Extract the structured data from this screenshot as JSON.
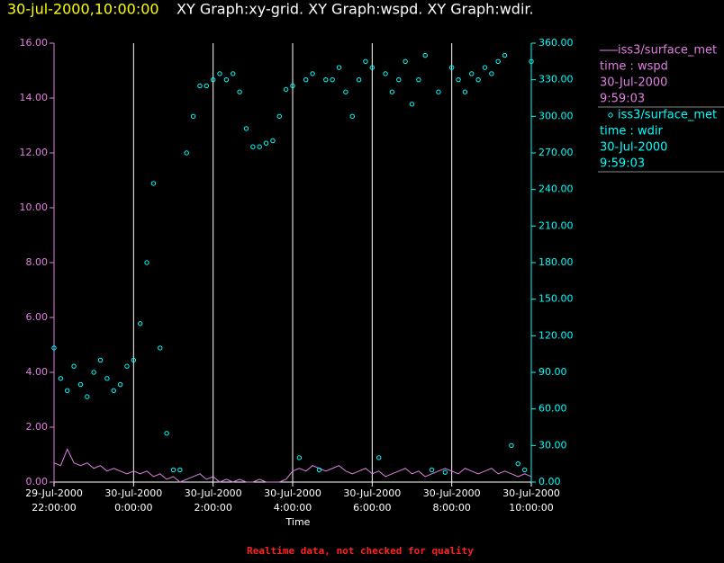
{
  "chart_data": {
    "type": "line-scatter",
    "title_time": "30-jul-2000,10:00:00",
    "title": "XY Graph:xy-grid.  XY Graph:wspd.  XY Graph:wdir.",
    "x_label": "Time",
    "note": "Realtime data, not checked for quality",
    "x": [
      "2000-07-29 22:00",
      "2000-07-29 22:10",
      "2000-07-29 22:20",
      "2000-07-29 22:30",
      "2000-07-29 22:40",
      "2000-07-29 22:50",
      "2000-07-29 23:00",
      "2000-07-29 23:10",
      "2000-07-29 23:20",
      "2000-07-29 23:30",
      "2000-07-29 23:40",
      "2000-07-29 23:50",
      "2000-07-30 00:00",
      "2000-07-30 00:10",
      "2000-07-30 00:20",
      "2000-07-30 00:30",
      "2000-07-30 00:40",
      "2000-07-30 00:50",
      "2000-07-30 01:00",
      "2000-07-30 01:10",
      "2000-07-30 01:20",
      "2000-07-30 01:30",
      "2000-07-30 01:40",
      "2000-07-30 01:50",
      "2000-07-30 02:00",
      "2000-07-30 02:10",
      "2000-07-30 02:20",
      "2000-07-30 02:30",
      "2000-07-30 02:40",
      "2000-07-30 02:50",
      "2000-07-30 03:00",
      "2000-07-30 03:10",
      "2000-07-30 03:20",
      "2000-07-30 03:30",
      "2000-07-30 03:40",
      "2000-07-30 03:50",
      "2000-07-30 04:00",
      "2000-07-30 04:10",
      "2000-07-30 04:20",
      "2000-07-30 04:30",
      "2000-07-30 04:40",
      "2000-07-30 04:50",
      "2000-07-30 05:00",
      "2000-07-30 05:10",
      "2000-07-30 05:20",
      "2000-07-30 05:30",
      "2000-07-30 05:40",
      "2000-07-30 05:50",
      "2000-07-30 06:00",
      "2000-07-30 06:10",
      "2000-07-30 06:20",
      "2000-07-30 06:30",
      "2000-07-30 06:40",
      "2000-07-30 06:50",
      "2000-07-30 07:00",
      "2000-07-30 07:10",
      "2000-07-30 07:20",
      "2000-07-30 07:30",
      "2000-07-30 07:40",
      "2000-07-30 07:50",
      "2000-07-30 08:00",
      "2000-07-30 08:10",
      "2000-07-30 08:20",
      "2000-07-30 08:30",
      "2000-07-30 08:40",
      "2000-07-30 08:50",
      "2000-07-30 09:00",
      "2000-07-30 09:10",
      "2000-07-30 09:20",
      "2000-07-30 09:30",
      "2000-07-30 09:40",
      "2000-07-30 09:50",
      "2000-07-30 10:00"
    ],
    "xlim": [
      "2000-07-29 22:00",
      "2000-07-30 10:00"
    ],
    "xticks": [
      {
        "value": "2000-07-29 22:00",
        "label": [
          "29-Jul-2000",
          "22:00:00"
        ]
      },
      {
        "value": "2000-07-30 00:00",
        "label": [
          "30-Jul-2000",
          "0:00:00"
        ]
      },
      {
        "value": "2000-07-30 02:00",
        "label": [
          "30-Jul-2000",
          "2:00:00"
        ]
      },
      {
        "value": "2000-07-30 04:00",
        "label": [
          "30-Jul-2000",
          "4:00:00"
        ]
      },
      {
        "value": "2000-07-30 06:00",
        "label": [
          "30-Jul-2000",
          "6:00:00"
        ]
      },
      {
        "value": "2000-07-30 08:00",
        "label": [
          "30-Jul-2000",
          "8:00:00"
        ]
      },
      {
        "value": "2000-07-30 10:00",
        "label": [
          "30-Jul-2000",
          "10:00:00"
        ]
      }
    ],
    "ylim": [
      0,
      16
    ],
    "yticks": [
      {
        "value": 0,
        "label": "0.00"
      },
      {
        "value": 2,
        "label": "2.00"
      },
      {
        "value": 4,
        "label": "4.00"
      },
      {
        "value": 6,
        "label": "6.00"
      },
      {
        "value": 8,
        "label": "8.00"
      },
      {
        "value": 10,
        "label": "10.00"
      },
      {
        "value": 12,
        "label": "12.00"
      },
      {
        "value": 14,
        "label": "14.00"
      },
      {
        "value": 16,
        "label": "16.00"
      }
    ],
    "y2lim": [
      0,
      360
    ],
    "y2ticks": [
      {
        "value": 0,
        "label": "0.00"
      },
      {
        "value": 30,
        "label": "30.00"
      },
      {
        "value": 60,
        "label": "60.00"
      },
      {
        "value": 90,
        "label": "90.00"
      },
      {
        "value": 120,
        "label": "120.00"
      },
      {
        "value": 150,
        "label": "150.00"
      },
      {
        "value": 180,
        "label": "180.00"
      },
      {
        "value": 210,
        "label": "210.00"
      },
      {
        "value": 240,
        "label": "240.00"
      },
      {
        "value": 270,
        "label": "270.00"
      },
      {
        "value": 300,
        "label": "300.00"
      },
      {
        "value": 330,
        "label": "330.00"
      },
      {
        "value": 360,
        "label": "360.00"
      }
    ],
    "series": [
      {
        "name": "iss3/surface_met",
        "field": "time : wspd",
        "date": "30-Jul-2000",
        "time": "9:59:03",
        "color": "#e080e0",
        "kind": "line",
        "values": [
          0.7,
          0.6,
          1.2,
          0.7,
          0.6,
          0.7,
          0.5,
          0.6,
          0.4,
          0.5,
          0.4,
          0.3,
          0.4,
          0.3,
          0.4,
          0.2,
          0.3,
          0.1,
          0.2,
          0,
          0.1,
          0.2,
          0.3,
          0.1,
          0.2,
          0,
          0.1,
          0,
          0.1,
          0,
          0,
          0.1,
          0,
          0,
          0,
          0.1,
          0.4,
          0.5,
          0.4,
          0.6,
          0.5,
          0.4,
          0.5,
          0.6,
          0.4,
          0.3,
          0.4,
          0.5,
          0.3,
          0.4,
          0.2,
          0.3,
          0.4,
          0.5,
          0.3,
          0.4,
          0.2,
          0.3,
          0.4,
          0.5,
          0.4,
          0.3,
          0.5,
          0.4,
          0.3,
          0.4,
          0.5,
          0.3,
          0.4,
          0.3,
          0.2,
          0.3,
          0.2
        ]
      },
      {
        "name": "iss3/surface_met",
        "field": "time : wdir",
        "date": "30-Jul-2000",
        "time": "9:59:03",
        "color": "#00ffff",
        "kind": "scatter",
        "axis": "y2",
        "values": [
          110,
          85,
          75,
          95,
          80,
          70,
          90,
          100,
          85,
          75,
          80,
          95,
          100,
          130,
          180,
          245,
          110,
          40,
          10,
          10,
          270,
          300,
          325,
          325,
          330,
          335,
          330,
          335,
          320,
          290,
          275,
          275,
          278,
          280,
          300,
          322,
          325,
          20,
          330,
          335,
          10,
          330,
          330,
          340,
          320,
          300,
          330,
          345,
          340,
          20,
          335,
          320,
          330,
          345,
          310,
          330,
          350,
          10,
          320,
          8,
          340,
          330,
          320,
          335,
          330,
          340,
          335,
          345,
          350,
          30,
          15,
          10,
          345
        ]
      }
    ]
  }
}
